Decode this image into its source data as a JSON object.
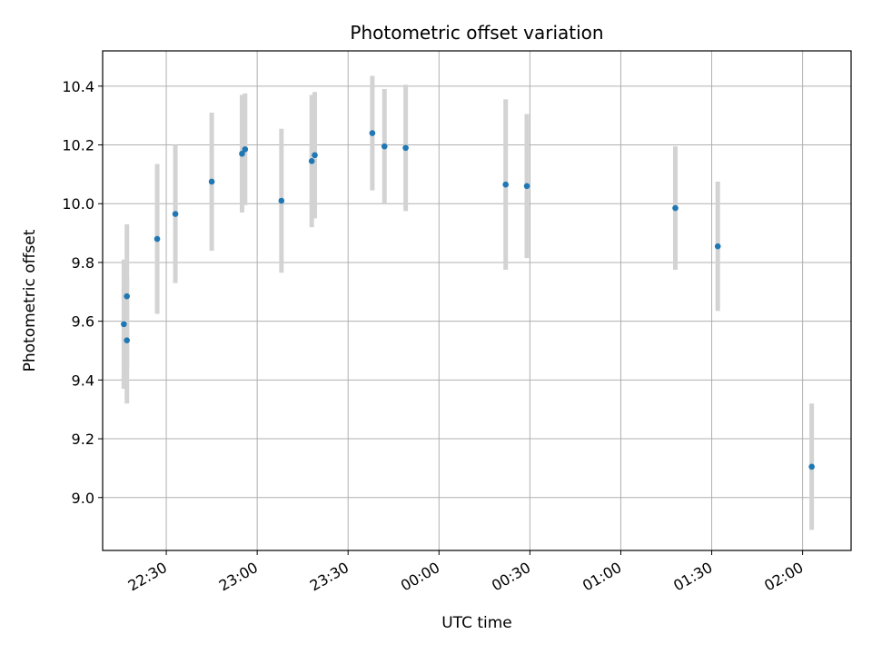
{
  "chart_data": {
    "type": "scatter",
    "title": "Photometric offset variation",
    "xlabel": "UTC time",
    "ylabel": "Photometric offset",
    "x_unit": "minutes",
    "xlim": [
      "22:09",
      "02:16"
    ],
    "ylim": [
      8.82,
      10.52
    ],
    "grid": true,
    "x_tick_labels": [
      "22:30",
      "23:00",
      "23:30",
      "00:00",
      "00:30",
      "01:00",
      "01:30",
      "02:00"
    ],
    "y_ticks": [
      9.0,
      9.2,
      9.4,
      9.6,
      9.8,
      10.0,
      10.2,
      10.4
    ],
    "y_tick_labels": [
      "9.0",
      "9.2",
      "9.4",
      "9.6",
      "9.8",
      "10.0",
      "10.2",
      "10.4"
    ],
    "points": [
      {
        "t": "22:16",
        "y": 9.59,
        "err": 0.22
      },
      {
        "t": "22:17",
        "y": 9.535,
        "err": 0.215
      },
      {
        "t": "22:17",
        "y": 9.685,
        "err": 0.245
      },
      {
        "t": "22:27",
        "y": 9.88,
        "err": 0.255
      },
      {
        "t": "22:33",
        "y": 9.965,
        "err": 0.235
      },
      {
        "t": "22:45",
        "y": 10.075,
        "err": 0.235
      },
      {
        "t": "22:55",
        "y": 10.17,
        "err": 0.2
      },
      {
        "t": "22:56",
        "y": 10.185,
        "err": 0.19
      },
      {
        "t": "23:08",
        "y": 10.01,
        "err": 0.245
      },
      {
        "t": "23:18",
        "y": 10.145,
        "err": 0.225
      },
      {
        "t": "23:19",
        "y": 10.165,
        "err": 0.215
      },
      {
        "t": "23:38",
        "y": 10.24,
        "err": 0.195
      },
      {
        "t": "23:42",
        "y": 10.195,
        "err": 0.195
      },
      {
        "t": "23:49",
        "y": 10.19,
        "err": 0.215
      },
      {
        "t": "00:22",
        "y": 10.065,
        "err": 0.29
      },
      {
        "t": "00:29",
        "y": 10.06,
        "err": 0.245
      },
      {
        "t": "01:18",
        "y": 9.985,
        "err": 0.21
      },
      {
        "t": "01:32",
        "y": 9.855,
        "err": 0.22
      },
      {
        "t": "02:03",
        "y": 9.105,
        "err": 0.215
      }
    ],
    "colors": {
      "marker": "#1f77b4",
      "errorbar": "#d3d3d3",
      "grid": "#b0b0b0",
      "axes": "#000000"
    }
  }
}
